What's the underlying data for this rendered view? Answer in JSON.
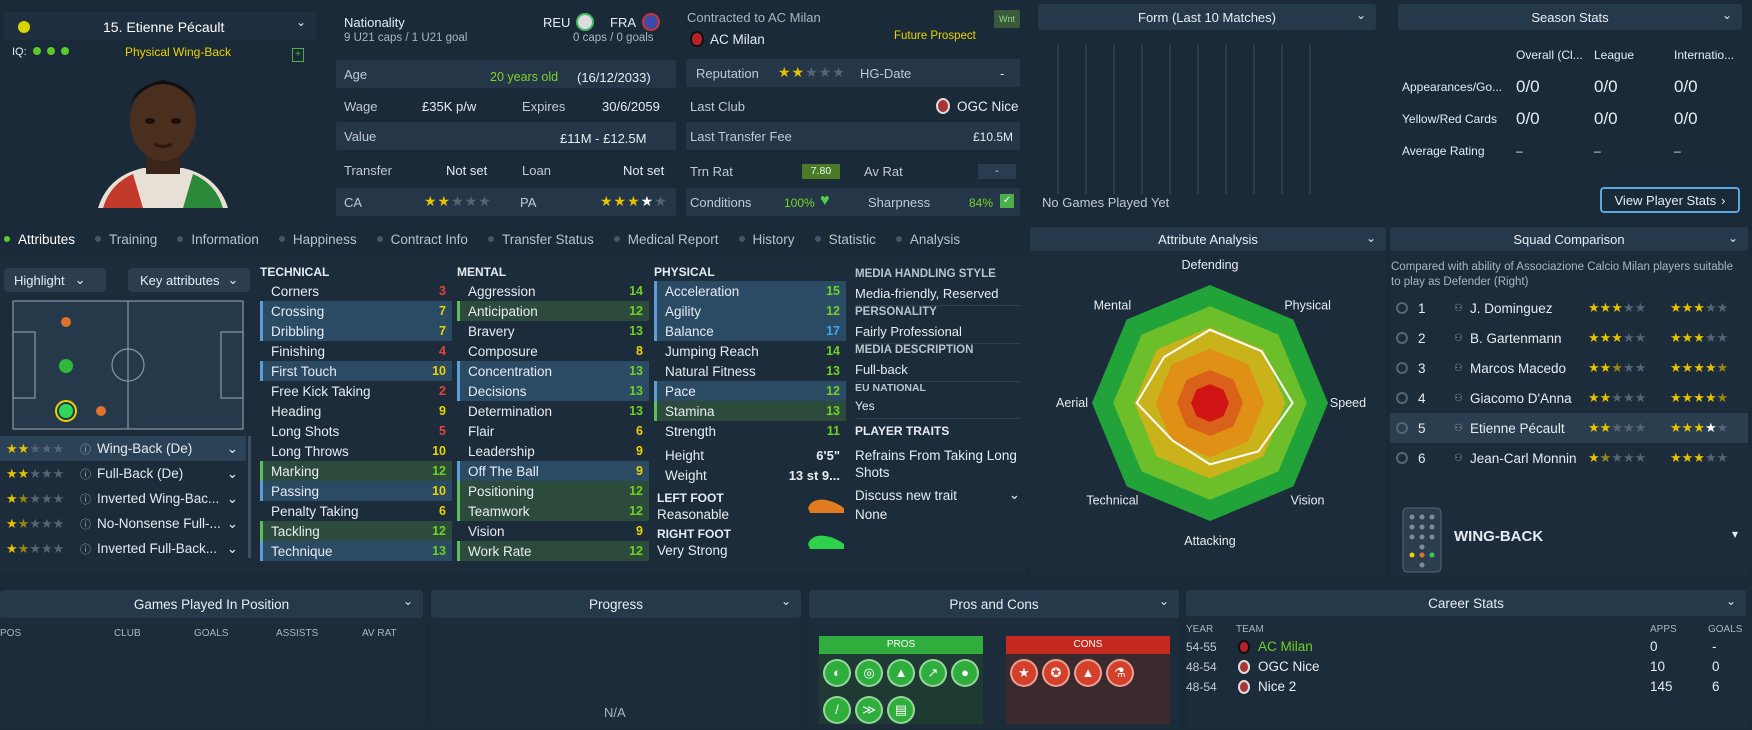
{
  "player": {
    "name": "15. Etienne Pécault",
    "iq_label": "IQ:",
    "role_label": "Physical Wing-Back"
  },
  "bio": {
    "nationality_label": "Nationality",
    "nat1_code": "REU",
    "nat1_caps": "9 U21 caps / 1 U21 goal",
    "nat2_code": "FRA",
    "nat2_caps": "0 caps / 0 goals",
    "age_label": "Age",
    "age_value": "20 years old",
    "dob": "(16/12/2033)",
    "wage_label": "Wage",
    "wage_value": "£35K p/w",
    "expires_label": "Expires",
    "expires_value": "30/6/2059",
    "value_label": "Value",
    "value_value": "£11M - £12.5M",
    "transfer_label": "Transfer",
    "transfer_value": "Not set",
    "loan_label": "Loan",
    "loan_value": "Not set",
    "ca_label": "CA",
    "ca_stars": "2",
    "pa_label": "PA",
    "pa_stars": "3.5"
  },
  "contract": {
    "contracted_label": "Contracted to AC Milan",
    "club": "AC Milan",
    "wnt_badge": "Wnt",
    "prospect": "Future Prospect",
    "reputation_label": "Reputation",
    "hg_label": "HG-Date",
    "hg_value": "-",
    "last_club_label": "Last Club",
    "last_club_value": "OGC Nice",
    "fee_label": "Last Transfer Fee",
    "fee_value": "£10.5M",
    "trn_label": "Trn Rat",
    "trn_value": "7.80",
    "av_label": "Av Rat",
    "av_value": "-",
    "conditions_label": "Conditions",
    "conditions_value": "100%",
    "sharpness_label": "Sharpness",
    "sharpness_value": "84%"
  },
  "form": {
    "title": "Form (Last 10 Matches)",
    "empty": "No Games Played Yet"
  },
  "season": {
    "title": "Season Stats",
    "cols": [
      "Overall (Cl...",
      "League",
      "Internatio..."
    ],
    "rows": [
      {
        "label": "Appearances/Go...",
        "vals": [
          "0/0",
          "0/0",
          "0/0"
        ]
      },
      {
        "label": "Yellow/Red Cards",
        "vals": [
          "0/0",
          "0/0",
          "0/0"
        ]
      },
      {
        "label": "Average Rating",
        "vals": [
          "–",
          "–",
          "–"
        ]
      }
    ],
    "button": "View Player Stats"
  },
  "tabs": [
    "Attributes",
    "Training",
    "Information",
    "Happiness",
    "Contract Info",
    "Transfer Status",
    "Medical Report",
    "History",
    "Statistic",
    "Analysis"
  ],
  "controls": {
    "highlight": "Highlight",
    "key_attributes": "Key attributes"
  },
  "positions": [
    {
      "label": "Wing-Back (De)",
      "stars": 2
    },
    {
      "label": "Full-Back (De)",
      "stars": 2
    },
    {
      "label": "Inverted Wing-Bac...",
      "stars": 1.5
    },
    {
      "label": "No-Nonsense Full-...",
      "stars": 1.5
    },
    {
      "label": "Inverted Full-Back...",
      "stars": 1.5
    }
  ],
  "technical": {
    "title": "TECHNICAL",
    "items": [
      {
        "name": "Corners",
        "value": "3"
      },
      {
        "name": "Crossing",
        "value": "7"
      },
      {
        "name": "Dribbling",
        "value": "7"
      },
      {
        "name": "Finishing",
        "value": "4"
      },
      {
        "name": "First Touch",
        "value": "10"
      },
      {
        "name": "Free Kick Taking",
        "value": "2"
      },
      {
        "name": "Heading",
        "value": "9"
      },
      {
        "name": "Long Shots",
        "value": "5"
      },
      {
        "name": "Long Throws",
        "value": "10"
      },
      {
        "name": "Marking",
        "value": "12"
      },
      {
        "name": "Passing",
        "value": "10"
      },
      {
        "name": "Penalty Taking",
        "value": "6"
      },
      {
        "name": "Tackling",
        "value": "12"
      },
      {
        "name": "Technique",
        "value": "13"
      }
    ]
  },
  "mental": {
    "title": "MENTAL",
    "items": [
      {
        "name": "Aggression",
        "value": "14"
      },
      {
        "name": "Anticipation",
        "value": "12"
      },
      {
        "name": "Bravery",
        "value": "13"
      },
      {
        "name": "Composure",
        "value": "8"
      },
      {
        "name": "Concentration",
        "value": "13"
      },
      {
        "name": "Decisions",
        "value": "13"
      },
      {
        "name": "Determination",
        "value": "13"
      },
      {
        "name": "Flair",
        "value": "6"
      },
      {
        "name": "Leadership",
        "value": "9"
      },
      {
        "name": "Off The Ball",
        "value": "9"
      },
      {
        "name": "Positioning",
        "value": "12"
      },
      {
        "name": "Teamwork",
        "value": "12"
      },
      {
        "name": "Vision",
        "value": "9"
      },
      {
        "name": "Work Rate",
        "value": "12"
      }
    ]
  },
  "physical": {
    "title": "PHYSICAL",
    "items": [
      {
        "name": "Acceleration",
        "value": "15"
      },
      {
        "name": "Agility",
        "value": "12"
      },
      {
        "name": "Balance",
        "value": "17"
      },
      {
        "name": "Jumping Reach",
        "value": "14"
      },
      {
        "name": "Natural Fitness",
        "value": "13"
      },
      {
        "name": "Pace",
        "value": "12"
      },
      {
        "name": "Stamina",
        "value": "13"
      },
      {
        "name": "Strength",
        "value": "11"
      }
    ],
    "height_label": "Height",
    "height_value": "6'5\"",
    "weight_label": "Weight",
    "weight_value": "13 st 9...",
    "left_foot_label": "LEFT FOOT",
    "left_foot_value": "Reasonable",
    "right_foot_label": "RIGHT FOOT",
    "right_foot_value": "Very Strong"
  },
  "media": {
    "style_label": "MEDIA HANDLING STYLE",
    "style_value": "Media-friendly, Reserved",
    "personality_label": "PERSONALITY",
    "personality_value": "Fairly Professional",
    "desc_label": "MEDIA DESCRIPTION",
    "desc_value": "Full-back",
    "eu_label": "EU NATIONAL",
    "eu_value": "Yes",
    "traits_label": "PLAYER TRAITS",
    "trait1": "Refrains From Taking Long Shots",
    "discuss": "Discuss new trait",
    "none": "None"
  },
  "analysis": {
    "title": "Attribute Analysis",
    "axes": [
      "Defending",
      "Physical",
      "Speed",
      "Vision",
      "Attacking",
      "Technical",
      "Aerial",
      "Mental"
    ],
    "values": [
      0.62,
      0.62,
      0.7,
      0.58,
      0.52,
      0.45,
      0.62,
      0.55
    ]
  },
  "squad": {
    "title": "Squad Comparison",
    "subtitle": "Compared with ability of Associazione Calcio Milan players suitable to play as Defender (Right)",
    "rows": [
      {
        "rank": "1",
        "name": "J. Dominguez",
        "ca": 3,
        "pa": 3
      },
      {
        "rank": "2",
        "name": "B. Gartenmann",
        "ca": 3,
        "pa": 3
      },
      {
        "rank": "3",
        "name": "Marcos Macedo",
        "ca": 2.5,
        "pa": 4.5
      },
      {
        "rank": "4",
        "name": "Giacomo D'Anna",
        "ca": 2,
        "pa": 4.5
      },
      {
        "rank": "5",
        "name": "Etienne Pécault",
        "ca": 2,
        "pa": 3.5
      },
      {
        "rank": "6",
        "name": "Jean-Carl Monnin",
        "ca": 1.5,
        "pa": 3
      }
    ],
    "position": "WING-BACK"
  },
  "games": {
    "title": "Games Played In Position",
    "cols": [
      "POS",
      "CLUB",
      "GOALS",
      "ASSISTS",
      "AV RAT"
    ]
  },
  "progress": {
    "title": "Progress",
    "empty": "N/A"
  },
  "proscons": {
    "title": "Pros and Cons",
    "pros": "PROS",
    "cons": "CONS"
  },
  "career": {
    "title": "Career Stats",
    "cols": [
      "YEAR",
      "TEAM",
      "APPS",
      "GOALS"
    ],
    "rows": [
      {
        "year": "54-55",
        "team": "AC Milan",
        "apps": "0",
        "goals": "-"
      },
      {
        "year": "48-54",
        "team": "OGC Nice",
        "apps": "10",
        "goals": "0"
      },
      {
        "year": "48-54",
        "team": "Nice 2",
        "apps": "145",
        "goals": "6"
      }
    ]
  },
  "colors": {
    "accent_green": "#7ad427",
    "star_yellow": "#e6c300",
    "pros_green": "#2fae3d",
    "cons_red": "#d4412a"
  }
}
